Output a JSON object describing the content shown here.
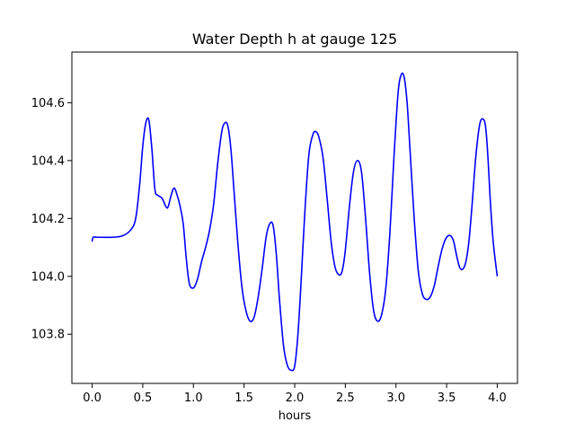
{
  "chart_data": {
    "type": "line",
    "title": "Water Depth h at gauge 125",
    "xlabel": "hours",
    "ylabel": "",
    "xlim": [
      -0.2,
      4.2
    ],
    "ylim": [
      103.63,
      104.775
    ],
    "xticks": [
      0.0,
      0.5,
      1.0,
      1.5,
      2.0,
      2.5,
      3.0,
      3.5,
      4.0
    ],
    "xtick_labels": [
      "0.0",
      "0.5",
      "1.0",
      "1.5",
      "2.0",
      "2.5",
      "3.0",
      "3.5",
      "4.0"
    ],
    "yticks": [
      103.8,
      104.0,
      104.2,
      104.4,
      104.6
    ],
    "ytick_labels": [
      "103.8",
      "104.0",
      "104.2",
      "104.4",
      "104.6"
    ],
    "grid": false,
    "series": [
      {
        "color": "#0000ff",
        "x": [
          0.0,
          0.01,
          0.05,
          0.1,
          0.2,
          0.3,
          0.38,
          0.43,
          0.47,
          0.5,
          0.53,
          0.56,
          0.59,
          0.62,
          0.65,
          0.69,
          0.73,
          0.75,
          0.78,
          0.81,
          0.84,
          0.87,
          0.9,
          0.93,
          0.96,
          1.0,
          1.04,
          1.08,
          1.12,
          1.16,
          1.2,
          1.24,
          1.28,
          1.31,
          1.34,
          1.37,
          1.4,
          1.44,
          1.48,
          1.52,
          1.56,
          1.6,
          1.64,
          1.68,
          1.72,
          1.76,
          1.79,
          1.82,
          1.85,
          1.89,
          1.93,
          1.97,
          2.0,
          2.03,
          2.06,
          2.1,
          2.14,
          2.18,
          2.21,
          2.24,
          2.28,
          2.32,
          2.36,
          2.4,
          2.44,
          2.47,
          2.5,
          2.54,
          2.58,
          2.62,
          2.66,
          2.7,
          2.74,
          2.78,
          2.82,
          2.86,
          2.9,
          2.94,
          2.98,
          3.02,
          3.05,
          3.08,
          3.11,
          3.14,
          3.18,
          3.22,
          3.26,
          3.3,
          3.34,
          3.38,
          3.42,
          3.46,
          3.5,
          3.54,
          3.57,
          3.6,
          3.63,
          3.66,
          3.69,
          3.72,
          3.75,
          3.79,
          3.83,
          3.87,
          3.89,
          3.91,
          3.93,
          3.96,
          4.0
        ],
        "y": [
          104.12,
          104.135,
          104.135,
          104.135,
          104.135,
          104.14,
          104.16,
          104.2,
          104.32,
          104.45,
          104.53,
          104.54,
          104.44,
          104.3,
          104.28,
          104.27,
          104.24,
          104.24,
          104.28,
          104.305,
          104.28,
          104.24,
          104.18,
          104.06,
          103.975,
          103.96,
          103.99,
          104.05,
          104.1,
          104.16,
          104.25,
          104.39,
          104.5,
          104.53,
          104.52,
          104.44,
          104.3,
          104.11,
          103.96,
          103.88,
          103.845,
          103.86,
          103.93,
          104.03,
          104.14,
          104.185,
          104.17,
          104.07,
          103.92,
          103.76,
          103.69,
          103.675,
          103.69,
          103.79,
          103.96,
          104.22,
          104.42,
          104.49,
          104.5,
          104.48,
          104.41,
          104.27,
          104.12,
          104.03,
          104.005,
          104.02,
          104.09,
          104.24,
          104.36,
          104.4,
          104.36,
          104.2,
          104.01,
          103.88,
          103.845,
          103.87,
          103.96,
          104.15,
          104.41,
          104.63,
          104.695,
          104.69,
          104.6,
          104.43,
          104.2,
          104.02,
          103.94,
          103.92,
          103.93,
          103.97,
          104.04,
          104.1,
          104.135,
          104.14,
          104.12,
          104.07,
          104.03,
          104.025,
          104.05,
          104.12,
          104.24,
          104.42,
          104.53,
          104.54,
          104.5,
          104.4,
          104.27,
          104.12,
          104.0
        ]
      }
    ]
  }
}
